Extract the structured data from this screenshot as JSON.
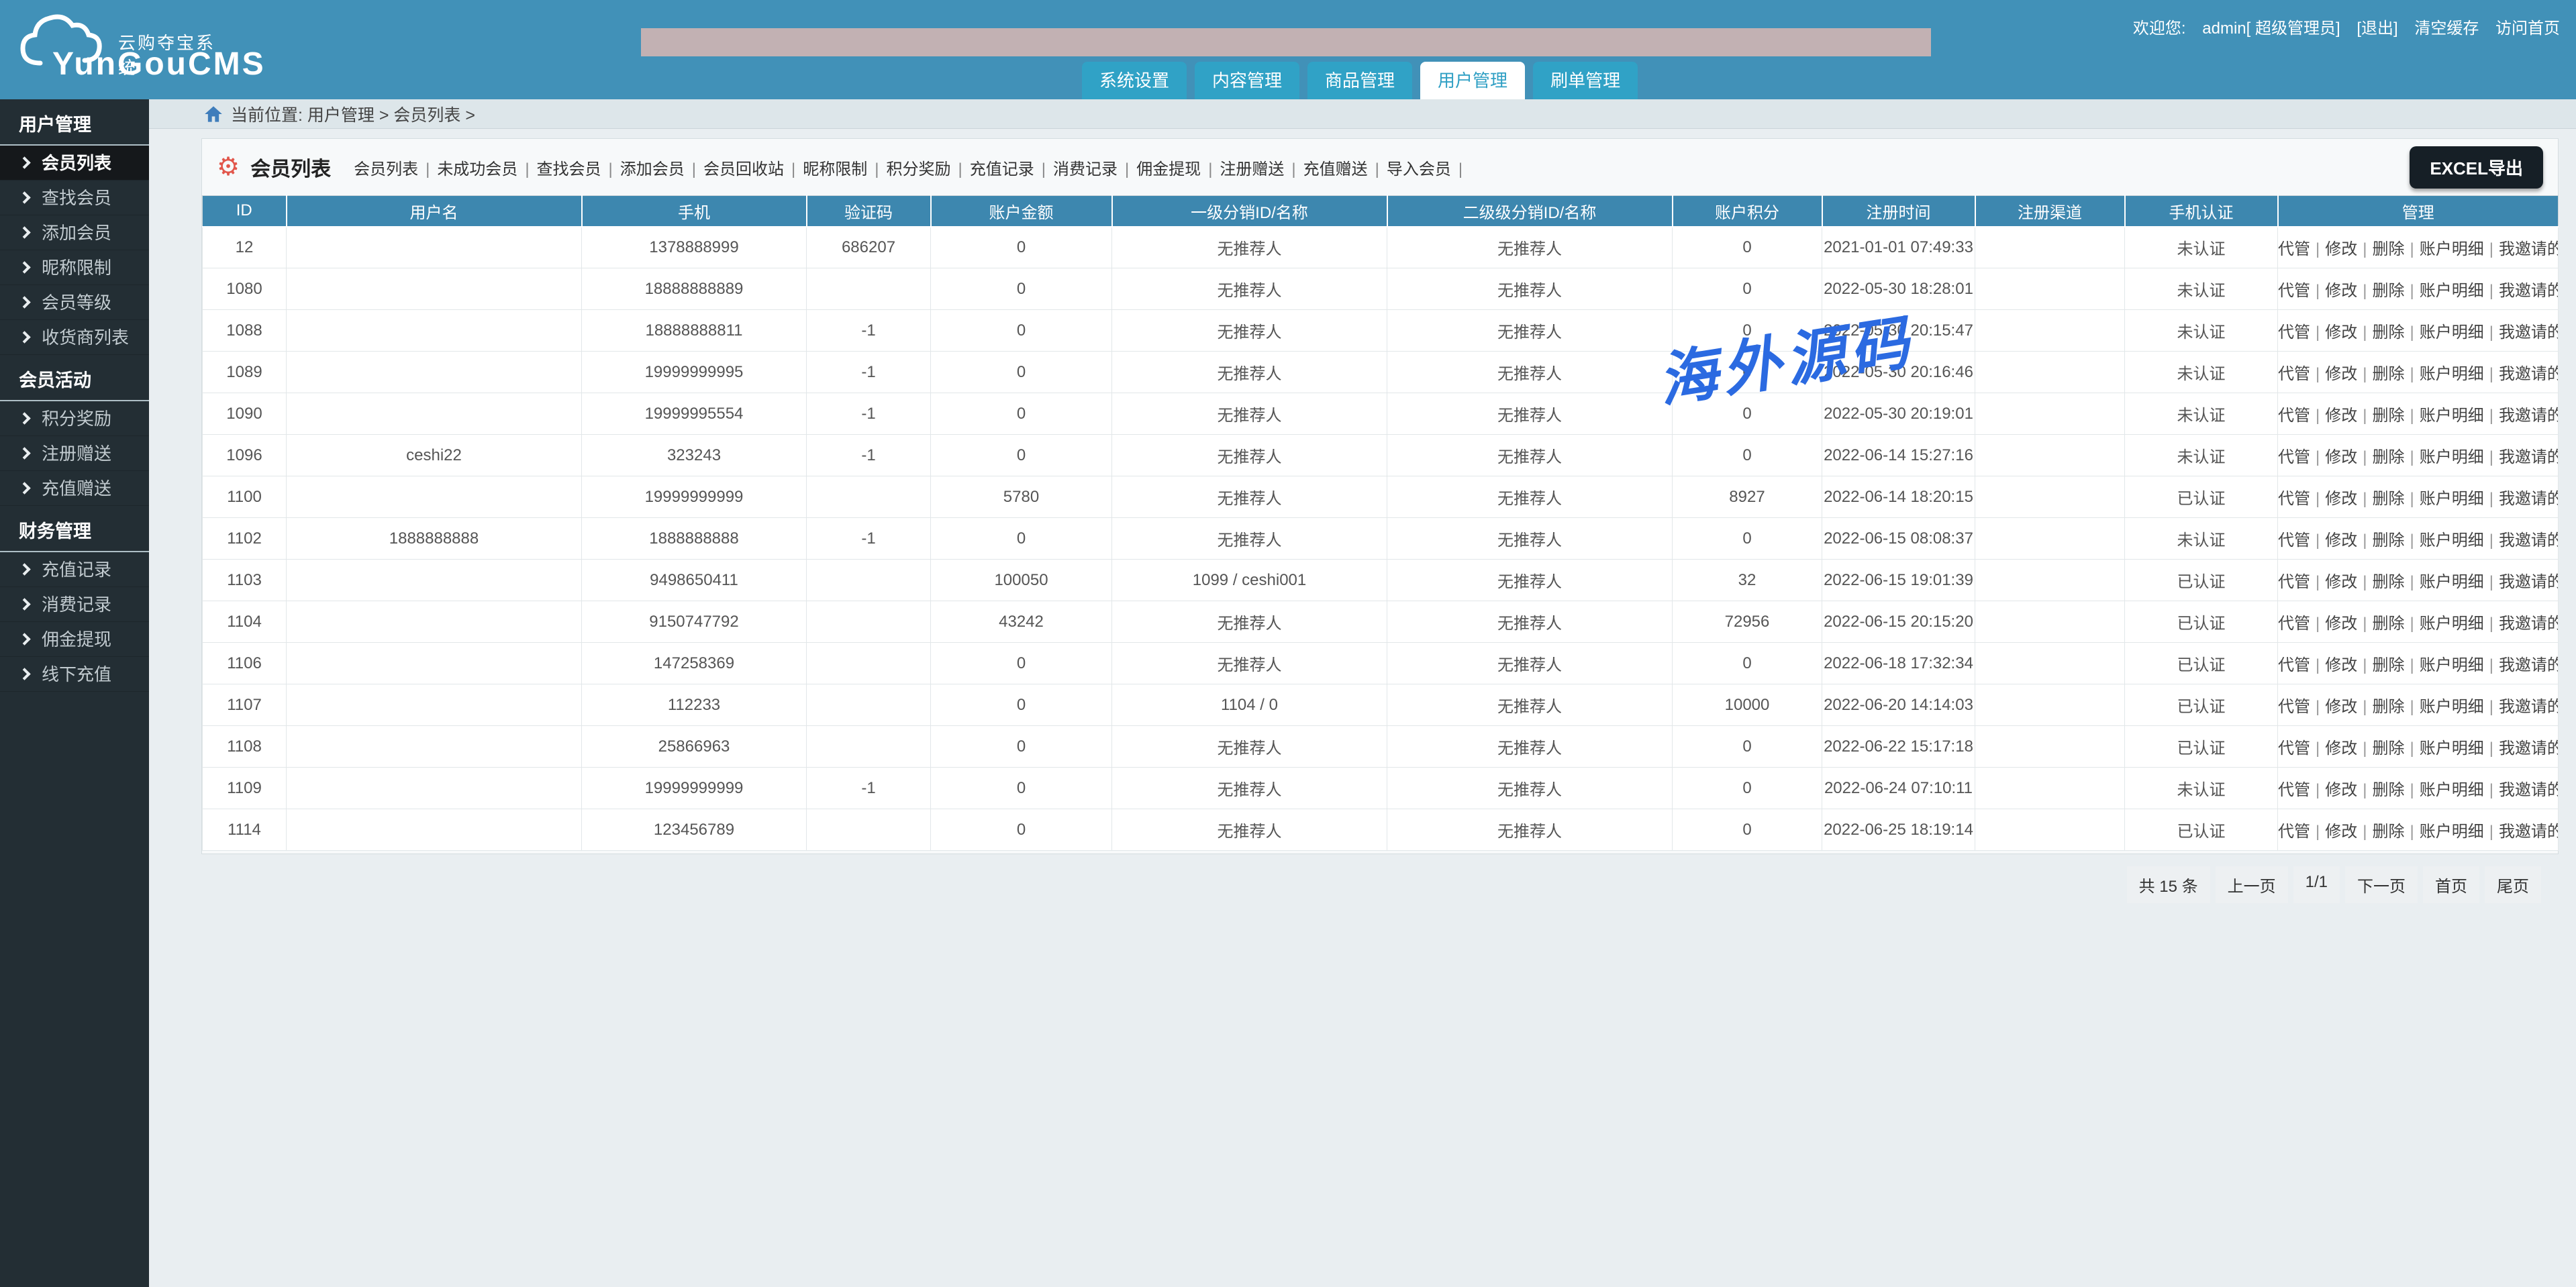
{
  "header": {
    "logo": {
      "title": "YunGouCMS",
      "subtitle": "云购夺宝系统"
    },
    "welcome": {
      "prefix": "欢迎您:",
      "user": "admin[ 超级管理员]",
      "logout": "[退出]",
      "clear_cache": "清空缓存",
      "visit_home": "访问首页"
    },
    "tabs": [
      {
        "label": "系统设置",
        "active": false
      },
      {
        "label": "内容管理",
        "active": false
      },
      {
        "label": "商品管理",
        "active": false
      },
      {
        "label": "用户管理",
        "active": true
      },
      {
        "label": "刷单管理",
        "active": false
      }
    ]
  },
  "sidebar": {
    "sections": [
      {
        "title": "用户管理",
        "items": [
          {
            "label": "会员列表",
            "active": true
          },
          {
            "label": "查找会员",
            "active": false
          },
          {
            "label": "添加会员",
            "active": false
          },
          {
            "label": "昵称限制",
            "active": false
          },
          {
            "label": "会员等级",
            "active": false
          },
          {
            "label": "收货商列表",
            "active": false
          }
        ]
      },
      {
        "title": "会员活动",
        "items": [
          {
            "label": "积分奖励",
            "active": false
          },
          {
            "label": "注册赠送",
            "active": false
          },
          {
            "label": "充值赠送",
            "active": false
          }
        ]
      },
      {
        "title": "财务管理",
        "items": [
          {
            "label": "充值记录",
            "active": false
          },
          {
            "label": "消费记录",
            "active": false
          },
          {
            "label": "佣金提现",
            "active": false
          },
          {
            "label": "线下充值",
            "active": false
          }
        ]
      }
    ]
  },
  "breadcrumb": {
    "text": "当前位置: 用户管理 > 会员列表 >"
  },
  "toolbar": {
    "title": "会员列表",
    "links": [
      "会员列表",
      "未成功会员",
      "查找会员",
      "添加会员",
      "会员回收站",
      "昵称限制",
      "积分奖励",
      "充值记录",
      "消费记录",
      "佣金提现",
      "注册赠送",
      "充值赠送",
      "导入会员"
    ],
    "export_label": "EXCEL导出"
  },
  "table": {
    "columns": [
      "ID",
      "用户名",
      "手机",
      "验证码",
      "账户金额",
      "一级分销ID/名称",
      "二级级分销ID/名称",
      "账户积分",
      "注册时间",
      "注册渠道",
      "手机认证",
      "管理"
    ],
    "actions": [
      "代管",
      "修改",
      "删除",
      "账户明细",
      "我邀请的用户"
    ],
    "rows": [
      {
        "id": "12",
        "username": "",
        "phone": "1378888999",
        "code": "686207",
        "balance": "0",
        "ref1": "无推荐人",
        "ref2": "无推荐人",
        "points": "0",
        "reg_time": "2021-01-01 07:49:33",
        "channel": "",
        "verified": "未认证"
      },
      {
        "id": "1080",
        "username": "",
        "phone": "18888888889",
        "code": "",
        "balance": "0",
        "ref1": "无推荐人",
        "ref2": "无推荐人",
        "points": "0",
        "reg_time": "2022-05-30 18:28:01",
        "channel": "",
        "verified": "未认证"
      },
      {
        "id": "1088",
        "username": "",
        "phone": "18888888811",
        "code": "-1",
        "balance": "0",
        "ref1": "无推荐人",
        "ref2": "无推荐人",
        "points": "0",
        "reg_time": "2022-05-30 20:15:47",
        "channel": "",
        "verified": "未认证"
      },
      {
        "id": "1089",
        "username": "",
        "phone": "19999999995",
        "code": "-1",
        "balance": "0",
        "ref1": "无推荐人",
        "ref2": "无推荐人",
        "points": "0",
        "reg_time": "2022-05-30 20:16:46",
        "channel": "",
        "verified": "未认证"
      },
      {
        "id": "1090",
        "username": "",
        "phone": "19999995554",
        "code": "-1",
        "balance": "0",
        "ref1": "无推荐人",
        "ref2": "无推荐人",
        "points": "0",
        "reg_time": "2022-05-30 20:19:01",
        "channel": "",
        "verified": "未认证"
      },
      {
        "id": "1096",
        "username": "ceshi22",
        "phone": "323243",
        "code": "-1",
        "balance": "0",
        "ref1": "无推荐人",
        "ref2": "无推荐人",
        "points": "0",
        "reg_time": "2022-06-14 15:27:16",
        "channel": "",
        "verified": "未认证"
      },
      {
        "id": "1100",
        "username": "",
        "phone": "19999999999",
        "code": "",
        "balance": "5780",
        "ref1": "无推荐人",
        "ref2": "无推荐人",
        "points": "8927",
        "reg_time": "2022-06-14 18:20:15",
        "channel": "",
        "verified": "已认证"
      },
      {
        "id": "1102",
        "username": "1888888888",
        "phone": "1888888888",
        "code": "-1",
        "balance": "0",
        "ref1": "无推荐人",
        "ref2": "无推荐人",
        "points": "0",
        "reg_time": "2022-06-15 08:08:37",
        "channel": "",
        "verified": "未认证"
      },
      {
        "id": "1103",
        "username": "",
        "phone": "9498650411",
        "code": "",
        "balance": "100050",
        "ref1": "1099 / ceshi001",
        "ref2": "无推荐人",
        "points": "32",
        "reg_time": "2022-06-15 19:01:39",
        "channel": "",
        "verified": "已认证"
      },
      {
        "id": "1104",
        "username": "",
        "phone": "9150747792",
        "code": "",
        "balance": "43242",
        "ref1": "无推荐人",
        "ref2": "无推荐人",
        "points": "72956",
        "reg_time": "2022-06-15 20:15:20",
        "channel": "",
        "verified": "已认证"
      },
      {
        "id": "1106",
        "username": "",
        "phone": "147258369",
        "code": "",
        "balance": "0",
        "ref1": "无推荐人",
        "ref2": "无推荐人",
        "points": "0",
        "reg_time": "2022-06-18 17:32:34",
        "channel": "",
        "verified": "已认证"
      },
      {
        "id": "1107",
        "username": "",
        "phone": "112233",
        "code": "",
        "balance": "0",
        "ref1": "1104 / 0",
        "ref2": "无推荐人",
        "points": "10000",
        "reg_time": "2022-06-20 14:14:03",
        "channel": "",
        "verified": "已认证"
      },
      {
        "id": "1108",
        "username": "",
        "phone": "25866963",
        "code": "",
        "balance": "0",
        "ref1": "无推荐人",
        "ref2": "无推荐人",
        "points": "0",
        "reg_time": "2022-06-22 15:17:18",
        "channel": "",
        "verified": "已认证"
      },
      {
        "id": "1109",
        "username": "",
        "phone": "19999999999",
        "code": "-1",
        "balance": "0",
        "ref1": "无推荐人",
        "ref2": "无推荐人",
        "points": "0",
        "reg_time": "2022-06-24 07:10:11",
        "channel": "",
        "verified": "未认证"
      },
      {
        "id": "1114",
        "username": "",
        "phone": "123456789",
        "code": "",
        "balance": "0",
        "ref1": "无推荐人",
        "ref2": "无推荐人",
        "points": "0",
        "reg_time": "2022-06-25 18:19:14",
        "channel": "",
        "verified": "已认证"
      }
    ]
  },
  "pagination": {
    "total": "共 15 条",
    "prev": "上一页",
    "page": "1/1",
    "next": "下一页",
    "first": "首页",
    "last": "尾页"
  },
  "watermark": "海外源码",
  "colors": {
    "header_bg": "#4191b8",
    "tab_bg": "#30a2c6",
    "tab_active_text": "#2f9fc4",
    "table_header_bg": "#3d87af",
    "verified_red": "#d0342c",
    "sidebar_bg": "#232e34",
    "banner_bg": "#c2b1b3",
    "watermark_blue": "#2b6ae1",
    "export_button_bg": "#161f26"
  }
}
